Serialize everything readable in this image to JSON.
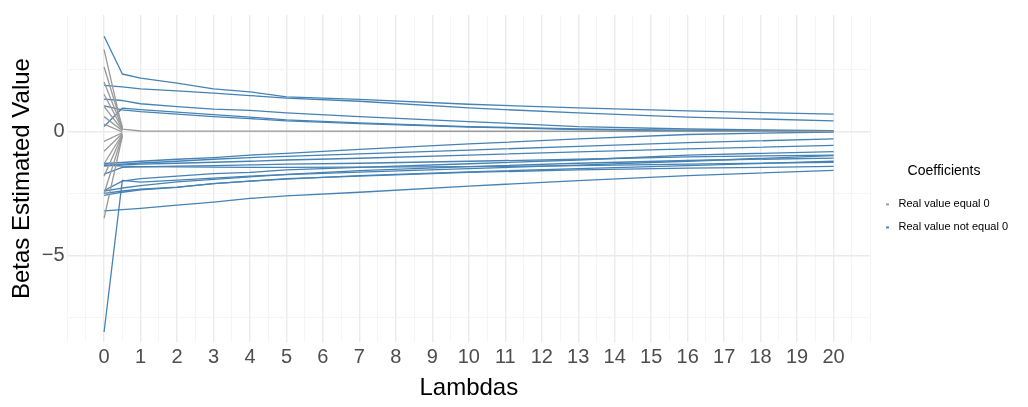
{
  "chart_data": {
    "type": "line",
    "xlabel": "Lambdas",
    "ylabel": "Betas Estimated Value",
    "legend_title": "Coefficients",
    "legend": "right",
    "grid": true,
    "marker": "none",
    "line_style": "solid",
    "xlim": [
      -1,
      21
    ],
    "xticks": [
      0,
      1,
      2,
      3,
      4,
      5,
      6,
      7,
      8,
      9,
      10,
      11,
      12,
      13,
      14,
      15,
      16,
      17,
      18,
      19,
      20
    ],
    "ylim": [
      -8.5,
      4.7
    ],
    "yticks": [
      -5,
      0
    ],
    "series": [
      {
        "name": "Real value equal 0",
        "color": "#999999",
        "x": [
          0,
          0.5,
          1,
          20
        ],
        "values": [
          3.3,
          0.1,
          0.02,
          0
        ]
      },
      {
        "color": "#999999",
        "x": [
          0,
          0.5
        ],
        "values": [
          2.6,
          0.18
        ]
      },
      {
        "color": "#999999",
        "x": [
          0,
          0.5
        ],
        "values": [
          2.0,
          0.14
        ]
      },
      {
        "color": "#999999",
        "x": [
          0,
          0.5
        ],
        "values": [
          1.5,
          0.1
        ]
      },
      {
        "color": "#999999",
        "x": [
          0,
          0.5
        ],
        "values": [
          1.0,
          0.06
        ]
      },
      {
        "color": "#999999",
        "x": [
          0,
          0.5
        ],
        "values": [
          0.6,
          0.03
        ]
      },
      {
        "color": "#999999",
        "x": [
          0,
          0.5
        ],
        "values": [
          0.3,
          -0.02
        ]
      },
      {
        "color": "#999999",
        "x": [
          0,
          0.5
        ],
        "values": [
          -0.4,
          -0.05
        ]
      },
      {
        "color": "#999999",
        "x": [
          0,
          0.5
        ],
        "values": [
          -0.8,
          -0.08
        ]
      },
      {
        "color": "#999999",
        "x": [
          0,
          0.5
        ],
        "values": [
          -1.3,
          -0.11
        ]
      },
      {
        "color": "#999999",
        "x": [
          0,
          0.5
        ],
        "values": [
          -1.8,
          -0.14
        ]
      },
      {
        "color": "#999999",
        "x": [
          0,
          0.5
        ],
        "values": [
          -2.5,
          -0.17
        ]
      },
      {
        "color": "#999999",
        "x": [
          0,
          0.5
        ],
        "values": [
          -3.5,
          -0.2
        ]
      },
      {
        "name": "Real value not equal 0",
        "color": "#4682b4",
        "x": [
          0,
          0.5,
          1,
          2,
          3,
          4,
          5,
          7,
          10,
          13,
          16,
          20
        ],
        "values": [
          3.84,
          2.32,
          2.15,
          1.95,
          1.72,
          1.6,
          1.4,
          1.3,
          1.1,
          0.95,
          0.83,
          0.7
        ]
      },
      {
        "color": "#4682b4",
        "x": [
          0,
          0.5,
          1,
          2,
          3,
          4,
          5,
          7,
          10,
          13,
          16,
          20
        ],
        "values": [
          1.86,
          1.8,
          1.72,
          1.64,
          1.55,
          1.45,
          1.35,
          1.22,
          0.95,
          0.75,
          0.58,
          0.43
        ]
      },
      {
        "color": "#4682b4",
        "x": [
          0,
          0.5,
          1,
          2,
          3,
          4,
          5,
          7,
          10,
          13,
          16,
          20
        ],
        "values": [
          1.31,
          1.25,
          1.12,
          1.0,
          0.9,
          0.85,
          0.75,
          0.6,
          0.4,
          0.2,
          0.1,
          0.03
        ]
      },
      {
        "color": "#4682b4",
        "x": [
          0,
          0.5,
          1,
          2,
          3,
          4,
          5,
          7,
          10,
          13,
          16,
          20
        ],
        "values": [
          1.03,
          0.87,
          0.8,
          0.7,
          0.6,
          0.52,
          0.43,
          0.32,
          0.18,
          0.08,
          0.03,
          0.01
        ]
      },
      {
        "color": "#4682b4",
        "x": [
          0,
          0.5,
          1,
          2,
          3,
          4,
          5,
          7,
          10,
          13,
          16,
          20
        ],
        "values": [
          0.2,
          0.94,
          0.88,
          0.78,
          0.68,
          0.58,
          0.47,
          0.35,
          0.2,
          0.1,
          0.04,
          0
        ]
      },
      {
        "color": "#4682b4",
        "x": [
          0,
          0.5,
          1,
          2,
          3,
          4,
          5,
          7,
          10,
          13,
          16,
          20
        ],
        "values": [
          -1.29,
          -1.25,
          -1.2,
          -1.12,
          -1.05,
          -0.95,
          -0.88,
          -0.72,
          -0.5,
          -0.3,
          -0.12,
          -0.02
        ]
      },
      {
        "color": "#4682b4",
        "x": [
          0,
          0.5,
          1,
          2,
          3,
          4,
          5,
          7,
          10,
          13,
          16,
          20
        ],
        "values": [
          -1.37,
          -1.32,
          -1.27,
          -1.2,
          -1.12,
          -1.05,
          -1.0,
          -0.9,
          -0.75,
          -0.6,
          -0.45,
          -0.3
        ]
      },
      {
        "color": "#4682b4",
        "x": [
          0,
          0.5,
          1,
          2,
          3,
          4,
          5,
          7,
          10,
          13,
          16,
          20
        ],
        "values": [
          -1.4,
          -1.35,
          -1.32,
          -1.28,
          -1.24,
          -1.2,
          -1.15,
          -1.08,
          -0.95,
          -0.82,
          -0.7,
          -0.56
        ]
      },
      {
        "color": "#4682b4",
        "x": [
          0,
          0.5,
          1,
          2,
          3,
          4,
          5,
          7,
          10,
          13,
          16,
          20
        ],
        "values": [
          -1.72,
          -1.45,
          -1.43,
          -1.4,
          -1.38,
          -1.35,
          -1.32,
          -1.28,
          -1.2,
          -1.12,
          -1.02,
          -0.95
        ]
      },
      {
        "color": "#4682b4",
        "x": [
          0,
          0.5,
          1,
          2,
          3,
          4,
          5,
          7,
          10,
          13,
          16,
          20
        ],
        "values": [
          -1.35,
          -1.4,
          -1.42,
          -1.43,
          -1.44,
          -1.45,
          -1.45,
          -1.44,
          -1.42,
          -1.38,
          -1.32,
          -1.24
        ]
      },
      {
        "color": "#4682b4",
        "x": [
          0,
          0.5,
          1,
          2,
          3,
          4,
          5,
          7,
          10,
          13,
          16,
          20
        ],
        "values": [
          -2.38,
          -2.0,
          -1.9,
          -1.8,
          -1.7,
          -1.65,
          -1.55,
          -1.45,
          -1.3,
          -1.15,
          -0.95,
          -0.81
        ]
      },
      {
        "color": "#4682b4",
        "x": [
          0,
          0.5,
          1,
          2,
          3,
          4,
          5,
          7,
          10,
          13,
          16,
          20
        ],
        "values": [
          -2.4,
          -2.28,
          -2.18,
          -2.03,
          -1.93,
          -1.83,
          -1.73,
          -1.58,
          -1.42,
          -1.28,
          -1.17,
          -1.07
        ]
      },
      {
        "color": "#4682b4",
        "x": [
          0,
          0.5,
          1,
          2,
          3,
          4,
          5,
          7,
          10,
          13,
          16,
          20
        ],
        "values": [
          -2.5,
          -2.4,
          -2.33,
          -2.24,
          -2.1,
          -2.0,
          -1.92,
          -1.78,
          -1.63,
          -1.5,
          -1.38,
          -1.2
        ]
      },
      {
        "color": "#4682b4",
        "x": [
          0,
          0.5,
          1,
          2,
          3,
          4,
          5,
          7,
          10,
          13,
          16,
          20
        ],
        "values": [
          -2.58,
          -2.45,
          -2.35,
          -2.25,
          -2.1,
          -2.0,
          -1.9,
          -1.8,
          -1.65,
          -1.55,
          -1.48,
          -1.41
        ]
      },
      {
        "color": "#4682b4",
        "x": [
          0,
          0.5,
          1,
          2,
          3,
          4,
          5,
          7,
          10,
          13,
          16,
          20
        ],
        "values": [
          -8.09,
          -1.97,
          -2.04,
          -1.96,
          -1.88,
          -1.8,
          -1.74,
          -1.64,
          -1.5,
          -1.36,
          -1.2,
          -0.97
        ]
      },
      {
        "color": "#4682b4",
        "x": [
          0,
          0.5,
          1,
          2,
          3,
          4,
          5,
          7,
          10,
          13,
          16,
          20
        ],
        "values": [
          -3.2,
          -3.15,
          -3.1,
          -2.97,
          -2.85,
          -2.7,
          -2.6,
          -2.45,
          -2.2,
          -1.98,
          -1.78,
          -1.57
        ]
      }
    ]
  }
}
